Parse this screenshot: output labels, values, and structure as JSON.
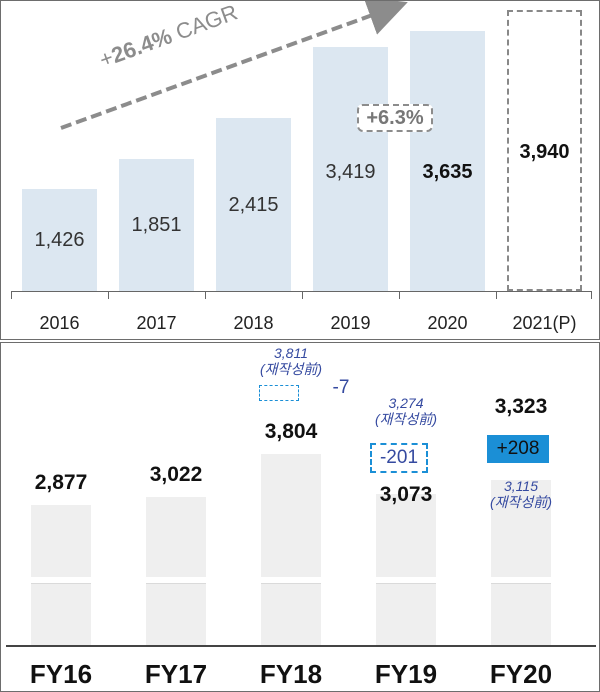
{
  "chart_data": [
    {
      "type": "bar",
      "categories": [
        "2016",
        "2017",
        "2018",
        "2019",
        "2020",
        "2021(P)"
      ],
      "values": [
        1426,
        1851,
        2415,
        3419,
        3635,
        3940
      ],
      "value_labels": [
        "1,426",
        "1,851",
        "2,415",
        "3,419",
        "3,635",
        "3,940"
      ],
      "ylim": [
        0,
        4200
      ],
      "projected_last": true,
      "annotations": {
        "cagr": "+26.4% CAGR",
        "cagr_prefix": "+",
        "cagr_value": "26.4%",
        "cagr_suffix": " CAGR",
        "growth": "+6.3%"
      },
      "colors": {
        "bar": "#dce7f1",
        "arrow": "#8c8c8c"
      }
    },
    {
      "type": "bar",
      "categories": [
        "FY16",
        "FY17",
        "FY18",
        "FY19",
        "FY20"
      ],
      "values": [
        2877,
        3022,
        3804,
        3073,
        3323
      ],
      "value_labels": [
        "2,877",
        "3,022",
        "3,804",
        "3,073",
        "3,323"
      ],
      "restated": [
        {
          "category": "FY18",
          "value_label": "3,811",
          "note": "(재작성前)",
          "delta": "-7"
        },
        {
          "category": "FY19",
          "value_label": "3,274",
          "note": "(재작성前)",
          "delta": "-201"
        },
        {
          "category": "FY20",
          "value_label": "3,115",
          "note": "(재작성前)",
          "delta": "+208"
        }
      ],
      "colors": {
        "bar": "#efefef",
        "note": "#354aa0",
        "positive": "#1b8fd6"
      }
    }
  ]
}
